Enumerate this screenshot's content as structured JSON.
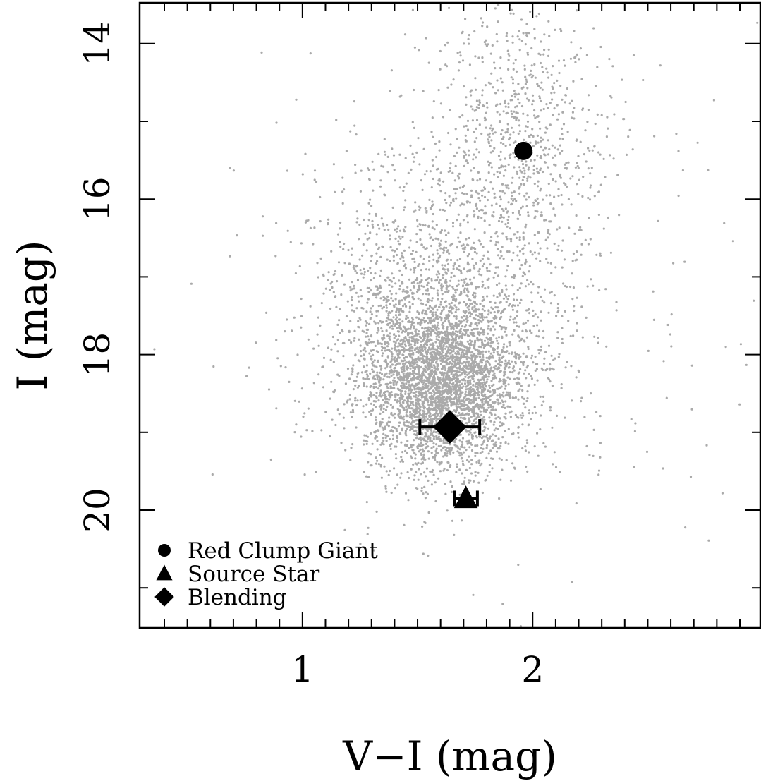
{
  "chart_data": {
    "type": "scatter",
    "xlabel": "V−I (mag)",
    "ylabel": "I (mag)",
    "xlim": [
      0.4,
      2.9
    ],
    "ylim": [
      20.0,
      15.0
    ],
    "y_inverted": true,
    "x_major_ticks": [
      1,
      2
    ],
    "x_major_tick_labels": [
      "1",
      "2"
    ],
    "x_minor_step": 0.1,
    "y_major_ticks": [
      14,
      16,
      18,
      20
    ],
    "y_major_tick_labels": [
      "14",
      "16",
      "18",
      "20"
    ],
    "y_minor_step": 1,
    "grid": false,
    "legend_placement": "bottom-left",
    "background_stars": {
      "name": "",
      "color": "#aaaaaa",
      "approx_count": 6000,
      "distribution": [
        {
          "center": [
            1.6,
            18.35
          ],
          "spread": [
            0.16,
            0.55
          ],
          "fraction": 0.55
        },
        {
          "center": [
            1.6,
            17.4
          ],
          "spread": [
            0.28,
            1.0
          ],
          "fraction": 0.28
        },
        {
          "center": [
            1.95,
            15.2
          ],
          "spread": [
            0.18,
            0.9
          ],
          "fraction": 0.12
        },
        {
          "center": [
            1.8,
            17.2
          ],
          "spread": [
            0.65,
            1.9
          ],
          "fraction": 0.05
        }
      ]
    },
    "markers": [
      {
        "name": "Red Clump Giant",
        "shape": "circle",
        "x": 1.96,
        "y": 15.38
      },
      {
        "name": "Source Star",
        "shape": "triangle",
        "x": 1.71,
        "y": 19.85,
        "x_err": 0.05,
        "y_err": 0.05
      },
      {
        "name": "Blending",
        "shape": "diamond",
        "x": 1.64,
        "y": 18.93,
        "x_err": 0.13,
        "y_err": 0.0
      }
    ],
    "legend": [
      "Red Clump Giant",
      "Source Star",
      "Blending"
    ]
  }
}
